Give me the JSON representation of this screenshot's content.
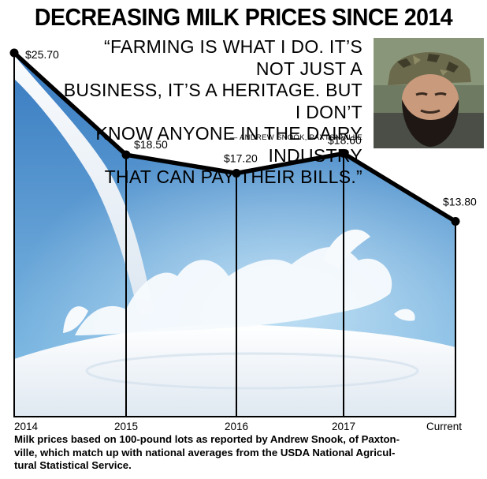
{
  "title": "DECREASING MILK PRICES SINCE 2014",
  "quote": {
    "text_lines": [
      "“FARMING IS WHAT I DO. IT’S NOT JUST A",
      "BUSINESS, IT’S A HERITAGE. BUT I DON’T",
      "KNOW ANYONE IN THE DAIRY INDUSTRY",
      "THAT CAN PAY THEIR BILLS.”"
    ],
    "attribution": "— ANDREW SNOOK, PAXTONVILLE"
  },
  "caption": {
    "lines": [
      "Milk prices based on 100-pound lots as reported by Andrew Snook, of Paxton-",
      "ville, which match up with national averages from the USDA National Agricul-",
      "tural Statistical Service."
    ]
  },
  "colors": {
    "line": "#000000",
    "fill_top": "#2b6fba",
    "fill_bottom": "#8ec7ea",
    "milk": "#f4f8fc",
    "accent_text": "#000000"
  },
  "chart_data": {
    "type": "area",
    "categories": [
      "2014",
      "2015",
      "2016",
      "2017",
      "Current"
    ],
    "values": [
      25.7,
      18.5,
      17.2,
      18.6,
      13.8
    ],
    "data_labels": [
      "$25.70",
      "$18.50",
      "$17.20",
      "$18.60",
      "$13.80"
    ],
    "title": "DECREASING MILK PRICES SINCE 2014",
    "xlabel": "",
    "ylabel": "",
    "ylim": [
      0,
      25.7
    ],
    "grid": false,
    "legend": "none",
    "background_image": "milk-splash"
  }
}
